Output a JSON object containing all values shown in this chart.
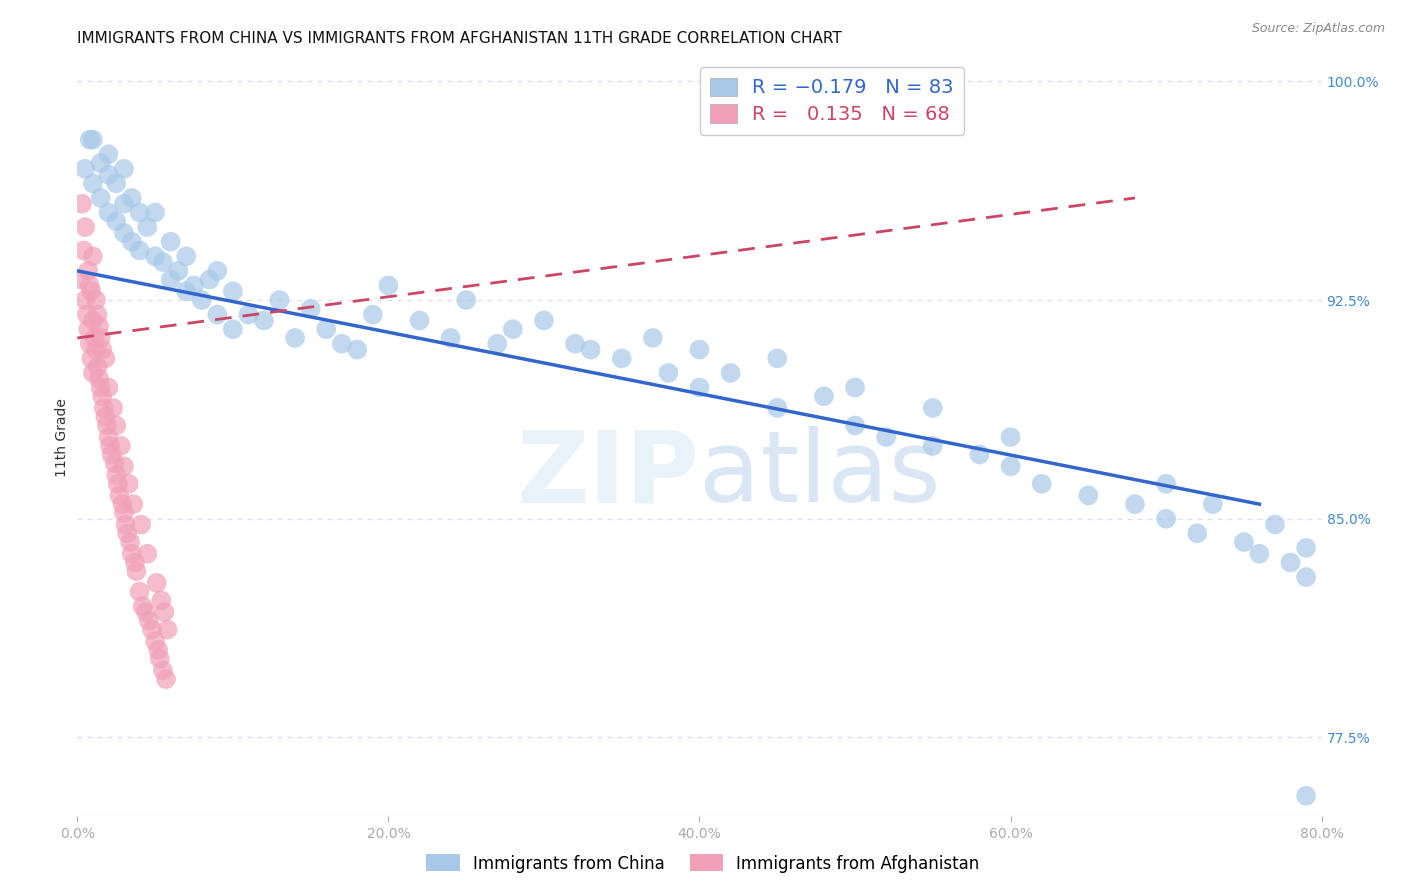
{
  "title": "IMMIGRANTS FROM CHINA VS IMMIGRANTS FROM AFGHANISTAN 11TH GRADE CORRELATION CHART",
  "source_text": "Source: ZipAtlas.com",
  "xlabel": "",
  "ylabel": "11th Grade",
  "legend_label_china": "Immigrants from China",
  "legend_label_afghan": "Immigrants from Afghanistan",
  "R_china": -0.179,
  "N_china": 83,
  "R_afghan": 0.135,
  "N_afghan": 68,
  "xlim": [
    0.0,
    0.8
  ],
  "ylim": [
    0.748,
    1.008
  ],
  "xtick_labels": [
    "0.0%",
    "20.0%",
    "40.0%",
    "60.0%",
    "80.0%"
  ],
  "xtick_values": [
    0.0,
    0.2,
    0.4,
    0.6,
    0.8
  ],
  "ytick_labels": [
    "77.5%",
    "85.0%",
    "92.5%",
    "100.0%"
  ],
  "ytick_values": [
    0.775,
    0.85,
    0.925,
    1.0
  ],
  "color_china": "#a8c8e8",
  "color_afghan": "#f0a0b8",
  "trendline_china_color": "#3366cc",
  "trendline_afghan_color": "#cc4466",
  "background_color": "#ffffff",
  "grid_color": "#d8dff0",
  "title_fontsize": 11,
  "axis_label_fontsize": 10,
  "tick_fontsize": 10,
  "legend_fontsize": 13,
  "watermark_text": "ZIPatlas",
  "china_trendline_x": [
    0.0,
    0.76
  ],
  "china_trendline_y": [
    0.935,
    0.855
  ],
  "afghan_trendline_x": [
    0.0,
    0.68
  ],
  "afghan_trendline_y": [
    0.912,
    0.96
  ],
  "china_x": [
    0.005,
    0.008,
    0.01,
    0.01,
    0.015,
    0.015,
    0.02,
    0.02,
    0.02,
    0.025,
    0.025,
    0.03,
    0.03,
    0.03,
    0.035,
    0.035,
    0.04,
    0.04,
    0.045,
    0.05,
    0.05,
    0.055,
    0.06,
    0.06,
    0.065,
    0.07,
    0.07,
    0.075,
    0.08,
    0.085,
    0.09,
    0.09,
    0.1,
    0.1,
    0.11,
    0.12,
    0.13,
    0.14,
    0.15,
    0.16,
    0.17,
    0.18,
    0.19,
    0.2,
    0.22,
    0.24,
    0.25,
    0.27,
    0.28,
    0.3,
    0.32,
    0.33,
    0.35,
    0.37,
    0.38,
    0.4,
    0.4,
    0.42,
    0.45,
    0.45,
    0.48,
    0.5,
    0.5,
    0.52,
    0.55,
    0.55,
    0.58,
    0.6,
    0.6,
    0.62,
    0.65,
    0.68,
    0.7,
    0.7,
    0.72,
    0.73,
    0.75,
    0.76,
    0.77,
    0.78,
    0.79,
    0.79,
    0.79
  ],
  "china_y": [
    0.97,
    0.98,
    0.965,
    0.98,
    0.96,
    0.972,
    0.955,
    0.968,
    0.975,
    0.952,
    0.965,
    0.948,
    0.958,
    0.97,
    0.945,
    0.96,
    0.942,
    0.955,
    0.95,
    0.94,
    0.955,
    0.938,
    0.932,
    0.945,
    0.935,
    0.928,
    0.94,
    0.93,
    0.925,
    0.932,
    0.92,
    0.935,
    0.915,
    0.928,
    0.92,
    0.918,
    0.925,
    0.912,
    0.922,
    0.915,
    0.91,
    0.908,
    0.92,
    0.93,
    0.918,
    0.912,
    0.925,
    0.91,
    0.915,
    0.918,
    0.91,
    0.908,
    0.905,
    0.912,
    0.9,
    0.908,
    0.895,
    0.9,
    0.888,
    0.905,
    0.892,
    0.882,
    0.895,
    0.878,
    0.875,
    0.888,
    0.872,
    0.868,
    0.878,
    0.862,
    0.858,
    0.855,
    0.85,
    0.862,
    0.845,
    0.855,
    0.842,
    0.838,
    0.848,
    0.835,
    0.83,
    0.84,
    0.755
  ],
  "afghan_x": [
    0.002,
    0.003,
    0.004,
    0.005,
    0.005,
    0.006,
    0.007,
    0.007,
    0.008,
    0.008,
    0.009,
    0.009,
    0.01,
    0.01,
    0.01,
    0.011,
    0.012,
    0.012,
    0.013,
    0.013,
    0.014,
    0.014,
    0.015,
    0.015,
    0.016,
    0.016,
    0.017,
    0.018,
    0.018,
    0.019,
    0.02,
    0.02,
    0.021,
    0.022,
    0.023,
    0.024,
    0.025,
    0.025,
    0.026,
    0.027,
    0.028,
    0.029,
    0.03,
    0.03,
    0.031,
    0.032,
    0.033,
    0.034,
    0.035,
    0.036,
    0.037,
    0.038,
    0.04,
    0.041,
    0.042,
    0.044,
    0.045,
    0.046,
    0.048,
    0.05,
    0.051,
    0.052,
    0.053,
    0.054,
    0.055,
    0.056,
    0.057,
    0.058
  ],
  "afghan_y": [
    0.932,
    0.958,
    0.942,
    0.925,
    0.95,
    0.92,
    0.915,
    0.935,
    0.91,
    0.93,
    0.905,
    0.928,
    0.9,
    0.918,
    0.94,
    0.912,
    0.908,
    0.925,
    0.902,
    0.92,
    0.898,
    0.916,
    0.895,
    0.912,
    0.892,
    0.908,
    0.888,
    0.885,
    0.905,
    0.882,
    0.878,
    0.895,
    0.875,
    0.872,
    0.888,
    0.869,
    0.865,
    0.882,
    0.862,
    0.858,
    0.875,
    0.855,
    0.852,
    0.868,
    0.848,
    0.845,
    0.862,
    0.842,
    0.838,
    0.855,
    0.835,
    0.832,
    0.825,
    0.848,
    0.82,
    0.818,
    0.838,
    0.815,
    0.812,
    0.808,
    0.828,
    0.805,
    0.802,
    0.822,
    0.798,
    0.818,
    0.795,
    0.812
  ]
}
